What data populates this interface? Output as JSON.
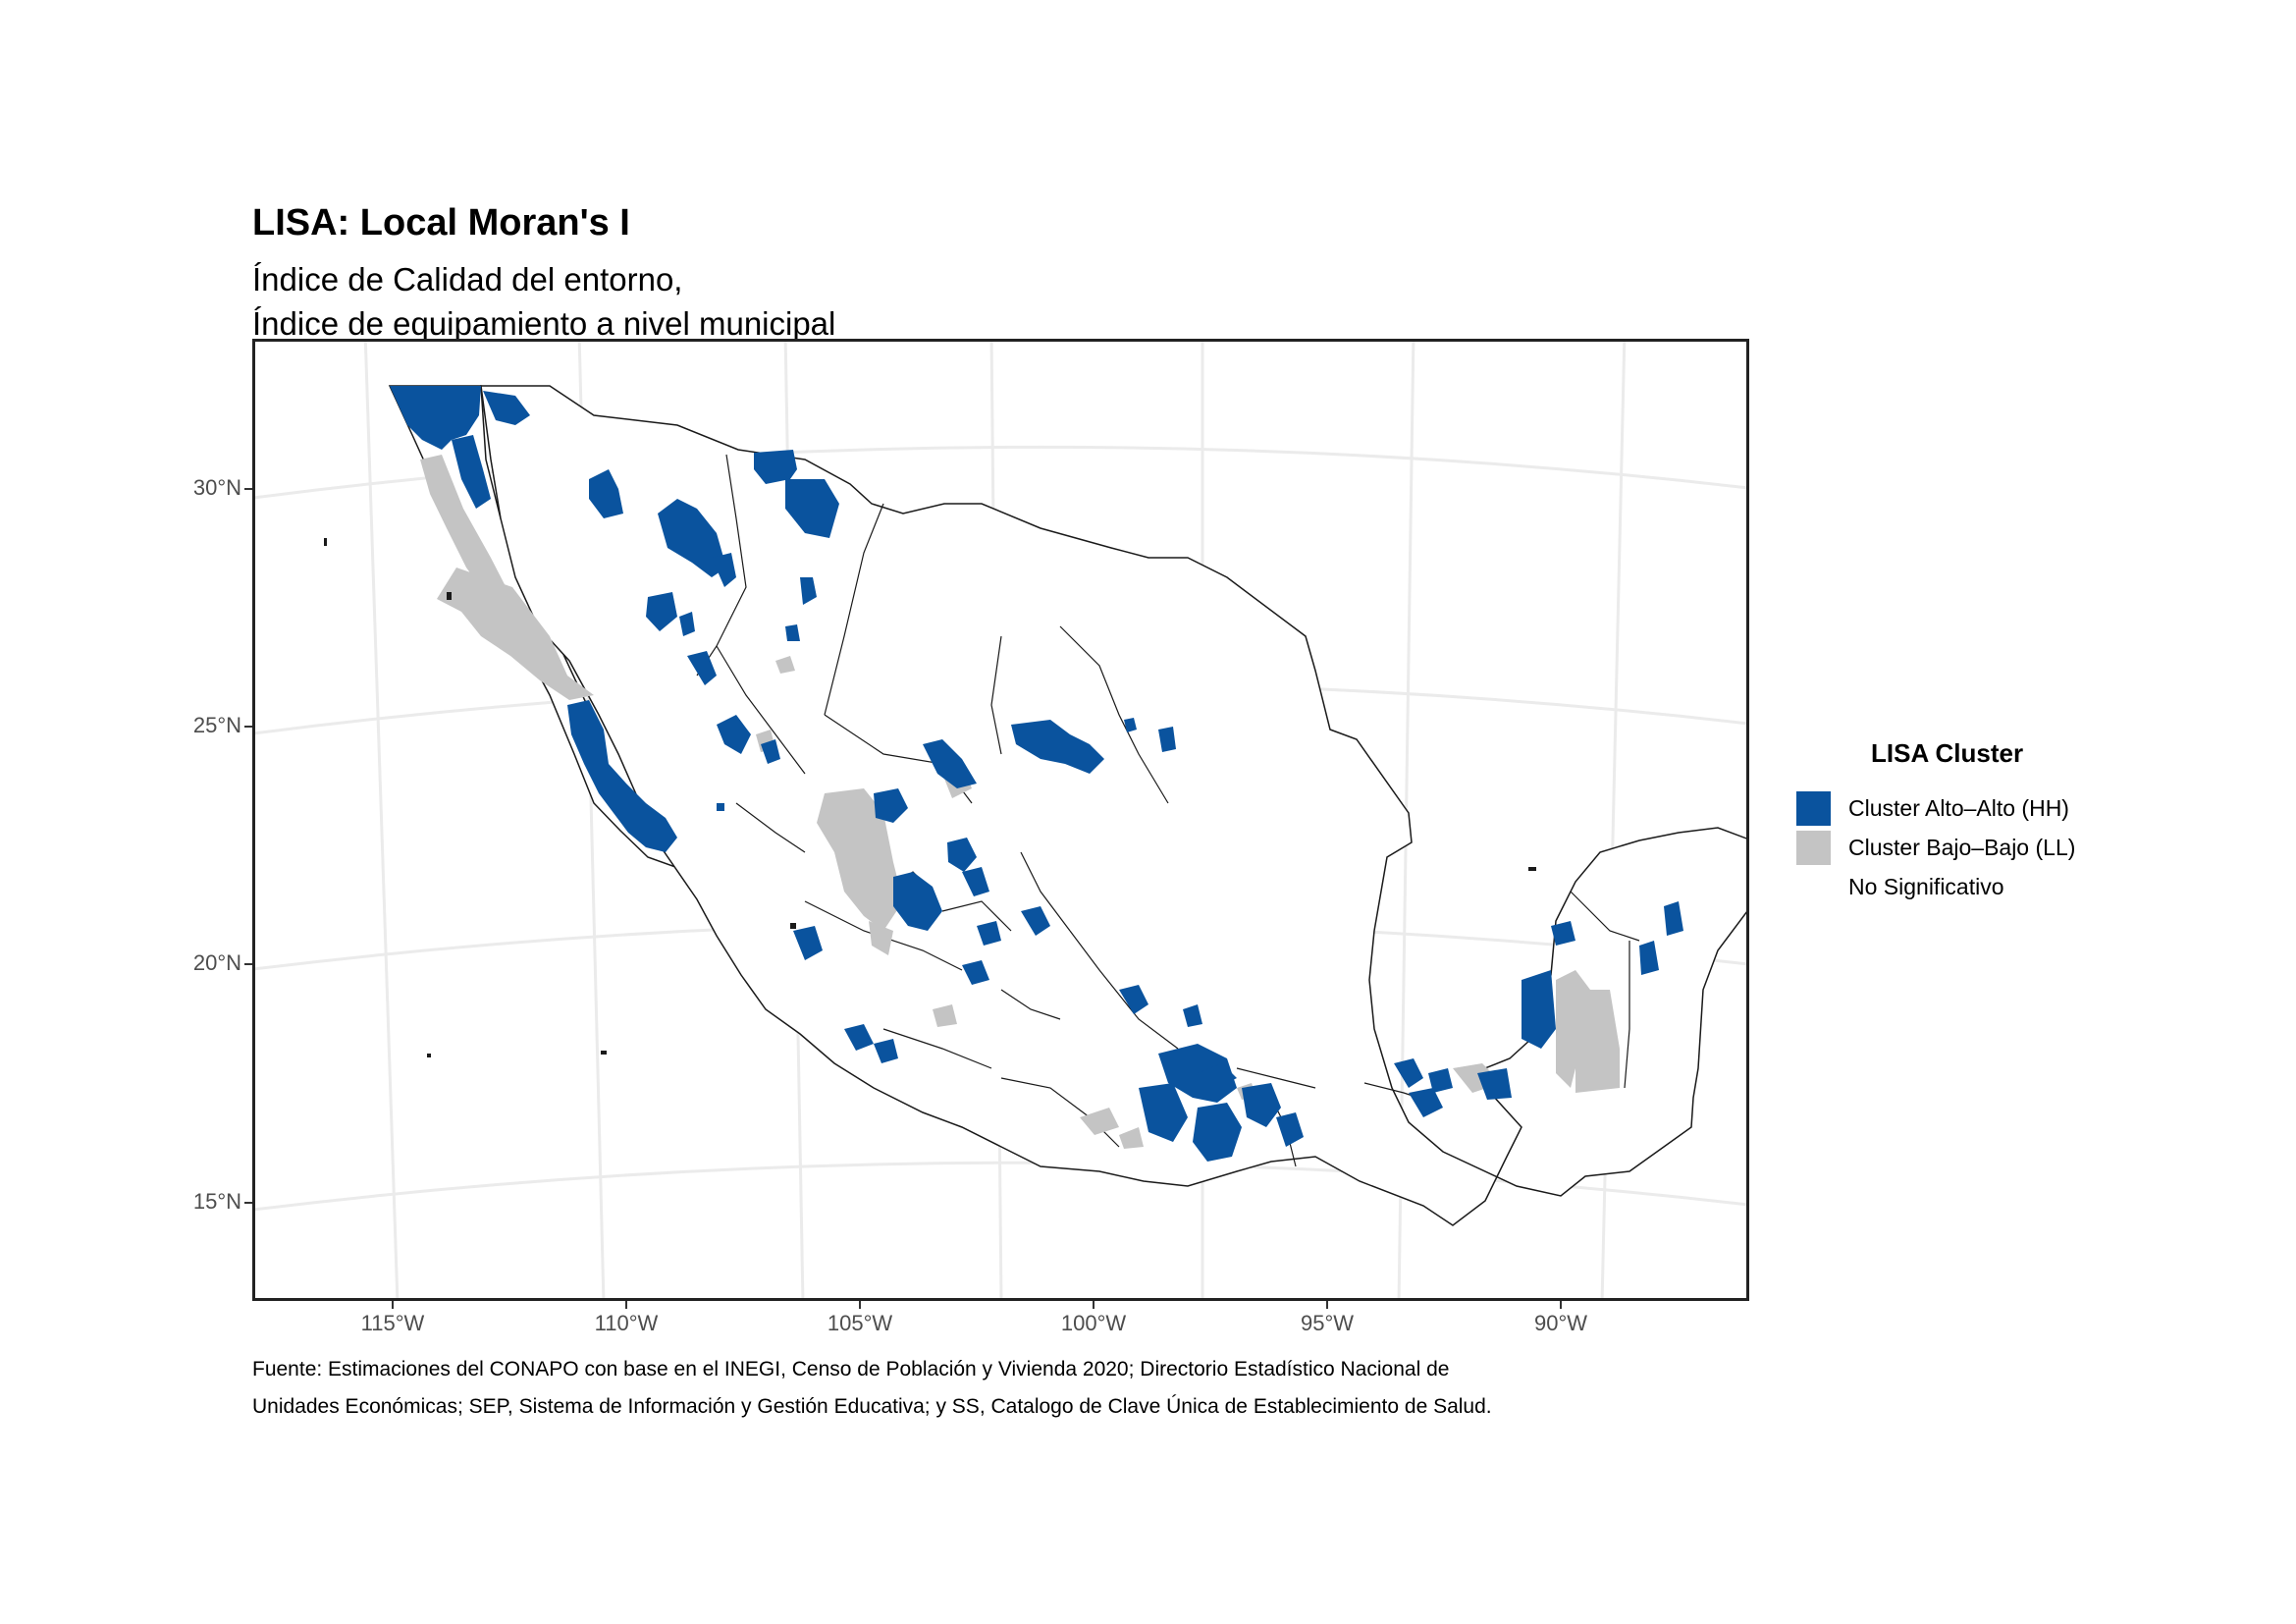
{
  "title": "LISA: Local Moran's I",
  "subtitle_lines": [
    "Índice de Calidad del entorno,",
    "Índice de equipamiento a nivel municipal"
  ],
  "y_axis_labels": [
    "30°N",
    "25°N",
    "20°N",
    "15°N"
  ],
  "x_axis_labels": [
    "115°W",
    "110°W",
    "105°W",
    "100°W",
    "95°W",
    "90°W"
  ],
  "legend": {
    "title": "LISA Cluster",
    "items": [
      {
        "label": "Cluster Alto–Alto (HH)",
        "color": "#0a539e"
      },
      {
        "label": "Cluster Bajo–Bajo (LL)",
        "color": "#c4c4c4"
      },
      {
        "label": "No Significativo",
        "color": "#ffffff"
      }
    ]
  },
  "caption_lines": [
    "Fuente: Estimaciones del CONAPO con base en el INEGI, Censo de Población y Vivienda 2020; Directorio Estadístico Nacional de",
    "Unidades Económicas; SEP, Sistema de Información y Gestión Educativa; y SS, Catalogo de Clave Única de Establecimiento de Salud."
  ],
  "colors": {
    "hh": "#0a539e",
    "ll": "#c4c4c4",
    "ns": "#ffffff",
    "border": "#1a1a1a",
    "grid": "#ebebeb"
  }
}
